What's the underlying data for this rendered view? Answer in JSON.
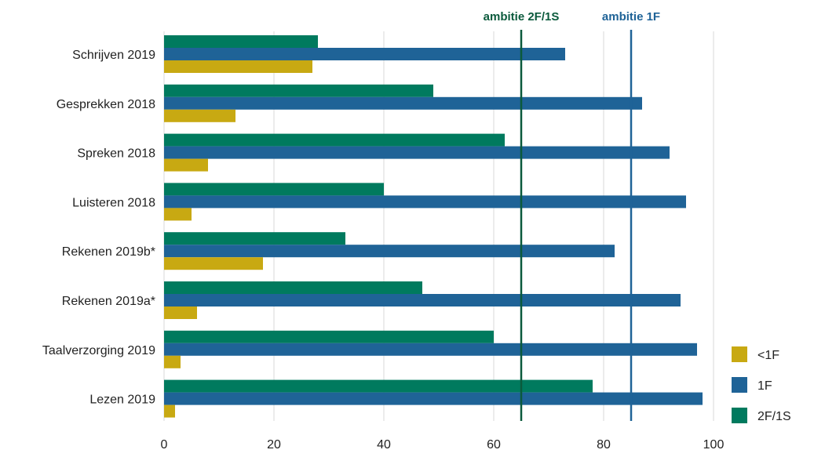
{
  "chart_data": {
    "type": "bar",
    "orientation": "horizontal",
    "categories": [
      "Schrijven 2019",
      "Gesprekken 2018",
      "Spreken 2018",
      "Luisteren 2018",
      "Rekenen 2019b*",
      "Rekenen 2019a*",
      "Taalverzorging 2019",
      "Lezen 2019"
    ],
    "series": [
      {
        "name": "2F/1S",
        "color": "#007a5e",
        "values": [
          28,
          49,
          62,
          40,
          33,
          47,
          60,
          78
        ]
      },
      {
        "name": "1F",
        "color": "#1f6397",
        "values": [
          73,
          87,
          92,
          95,
          82,
          94,
          97,
          98
        ]
      },
      {
        "name": "<1F",
        "color": "#c8a912",
        "values": [
          27,
          13,
          8,
          5,
          18,
          6,
          3,
          2
        ]
      }
    ],
    "xlim": [
      0,
      100
    ],
    "x_ticks": [
      "0",
      "20",
      "40",
      "60",
      "80",
      "100"
    ],
    "grid": "vertical",
    "reference_lines": [
      {
        "label": "ambitie 2F/1S",
        "value": 65,
        "color": "#0b5a3c"
      },
      {
        "label": "ambitie 1F",
        "value": 85,
        "color": "#1f6397"
      }
    ],
    "legend": {
      "position": "bottom-right",
      "entries": [
        {
          "label": "<1F",
          "color": "#c8a912"
        },
        {
          "label": "1F",
          "color": "#1f6397"
        },
        {
          "label": "2F/1S",
          "color": "#007a5e"
        }
      ]
    }
  }
}
